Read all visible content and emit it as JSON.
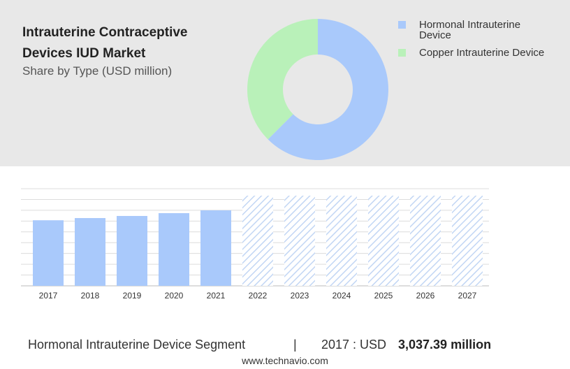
{
  "title": "Intrauterine Contraceptive Devices IUD Market",
  "subtitle": "Share by Type (USD million)",
  "chart_data": [
    {
      "type": "donut",
      "categories": [
        "Hormonal Intrauterine Device",
        "Copper Intrauterine Device"
      ],
      "values": [
        62.5,
        37.5
      ],
      "colors": [
        "#a9c9fb",
        "#b9f1b9"
      ]
    },
    {
      "type": "bar",
      "categories": [
        "2017",
        "2018",
        "2019",
        "2020",
        "2021",
        "2022",
        "2023",
        "2024",
        "2025",
        "2026",
        "2027"
      ],
      "values": [
        3037.39,
        3140,
        3237,
        3367,
        3497,
        4178,
        4178,
        4178,
        4178,
        4178,
        4178
      ],
      "hatched": [
        false,
        false,
        false,
        false,
        false,
        true,
        true,
        true,
        true,
        true,
        true
      ],
      "color": "#a9c9fb",
      "ylim": [
        0,
        4500
      ],
      "yticks": [
        0,
        500,
        1000,
        1500,
        2000,
        2500,
        3000,
        3500,
        4000,
        4500
      ],
      "grid": true
    }
  ],
  "footer": {
    "segment": "Hormonal Intrauterine Device Segment",
    "separator": "|",
    "year": "2017 : USD",
    "value": "3,037.39 million",
    "site": "www.technavio.com"
  }
}
